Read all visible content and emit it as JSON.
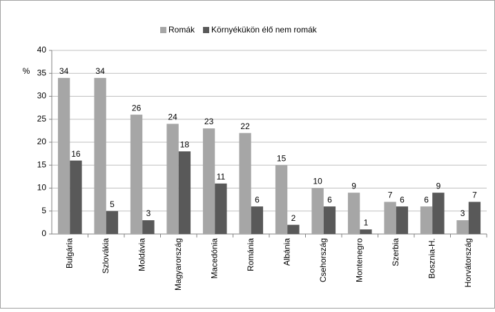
{
  "chart_data": {
    "type": "bar",
    "y_label": "%",
    "categories": [
      "Bulgária",
      "Szlovákia",
      "Moldávia",
      "Magyarország",
      "Macedónia",
      "Románia",
      "Albánia",
      "Csehország",
      "Montenegro",
      "Szerbia",
      "Bosznia-H.",
      "Horvátország"
    ],
    "series": [
      {
        "name": "Romák",
        "color": "#a6a6a6",
        "values": [
          34,
          34,
          26,
          24,
          23,
          22,
          15,
          10,
          9,
          7,
          6,
          3
        ]
      },
      {
        "name": "Környékükön élő nem romák",
        "color": "#595959",
        "values": [
          16,
          5,
          3,
          18,
          11,
          6,
          2,
          6,
          1,
          6,
          9,
          7
        ]
      }
    ],
    "ylim": [
      0,
      40
    ],
    "yticks": [
      0,
      5,
      10,
      15,
      20,
      25,
      30,
      35,
      40
    ],
    "grid": true,
    "legend": "top"
  }
}
